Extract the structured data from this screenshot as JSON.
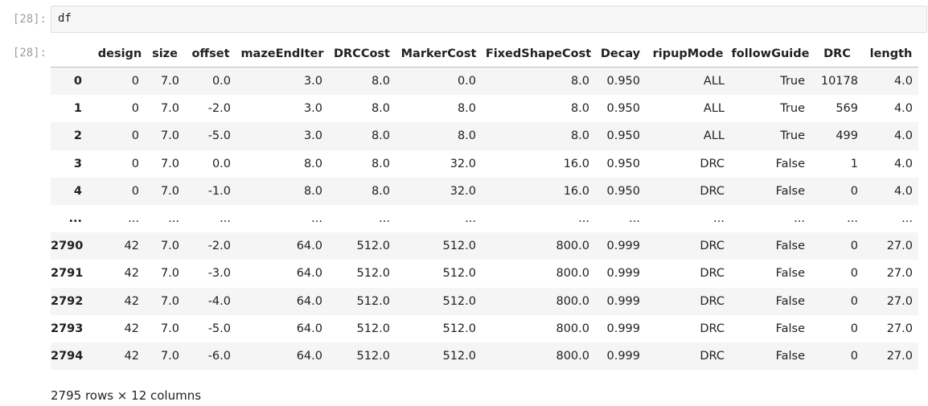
{
  "cell": {
    "in_prompt": "[28]:",
    "out_prompt": "[28]:",
    "code": "df"
  },
  "table": {
    "columns": [
      "design",
      "size",
      "offset",
      "mazeEndIter",
      "DRCCost",
      "MarkerCost",
      "FixedShapeCost",
      "Decay",
      "ripupMode",
      "followGuide",
      "DRC",
      "length"
    ],
    "rows": [
      {
        "index": "0",
        "cells": [
          "0",
          "7.0",
          "0.0",
          "3.0",
          "8.0",
          "0.0",
          "8.0",
          "0.950",
          "ALL",
          "True",
          "10178",
          "4.0"
        ]
      },
      {
        "index": "1",
        "cells": [
          "0",
          "7.0",
          "-2.0",
          "3.0",
          "8.0",
          "8.0",
          "8.0",
          "0.950",
          "ALL",
          "True",
          "569",
          "4.0"
        ]
      },
      {
        "index": "2",
        "cells": [
          "0",
          "7.0",
          "-5.0",
          "3.0",
          "8.0",
          "8.0",
          "8.0",
          "0.950",
          "ALL",
          "True",
          "499",
          "4.0"
        ]
      },
      {
        "index": "3",
        "cells": [
          "0",
          "7.0",
          "0.0",
          "8.0",
          "8.0",
          "32.0",
          "16.0",
          "0.950",
          "DRC",
          "False",
          "1",
          "4.0"
        ]
      },
      {
        "index": "4",
        "cells": [
          "0",
          "7.0",
          "-1.0",
          "8.0",
          "8.0",
          "32.0",
          "16.0",
          "0.950",
          "DRC",
          "False",
          "0",
          "4.0"
        ]
      },
      {
        "index": "...",
        "cells": [
          "...",
          "...",
          "...",
          "...",
          "...",
          "...",
          "...",
          "...",
          "...",
          "...",
          "...",
          "..."
        ]
      },
      {
        "index": "2790",
        "cells": [
          "42",
          "7.0",
          "-2.0",
          "64.0",
          "512.0",
          "512.0",
          "800.0",
          "0.999",
          "DRC",
          "False",
          "0",
          "27.0"
        ]
      },
      {
        "index": "2791",
        "cells": [
          "42",
          "7.0",
          "-3.0",
          "64.0",
          "512.0",
          "512.0",
          "800.0",
          "0.999",
          "DRC",
          "False",
          "0",
          "27.0"
        ]
      },
      {
        "index": "2792",
        "cells": [
          "42",
          "7.0",
          "-4.0",
          "64.0",
          "512.0",
          "512.0",
          "800.0",
          "0.999",
          "DRC",
          "False",
          "0",
          "27.0"
        ]
      },
      {
        "index": "2793",
        "cells": [
          "42",
          "7.0",
          "-5.0",
          "64.0",
          "512.0",
          "512.0",
          "800.0",
          "0.999",
          "DRC",
          "False",
          "0",
          "27.0"
        ]
      },
      {
        "index": "2794",
        "cells": [
          "42",
          "7.0",
          "-6.0",
          "64.0",
          "512.0",
          "512.0",
          "800.0",
          "0.999",
          "DRC",
          "False",
          "0",
          "27.0"
        ]
      }
    ],
    "summary": "2795 rows × 12 columns"
  }
}
